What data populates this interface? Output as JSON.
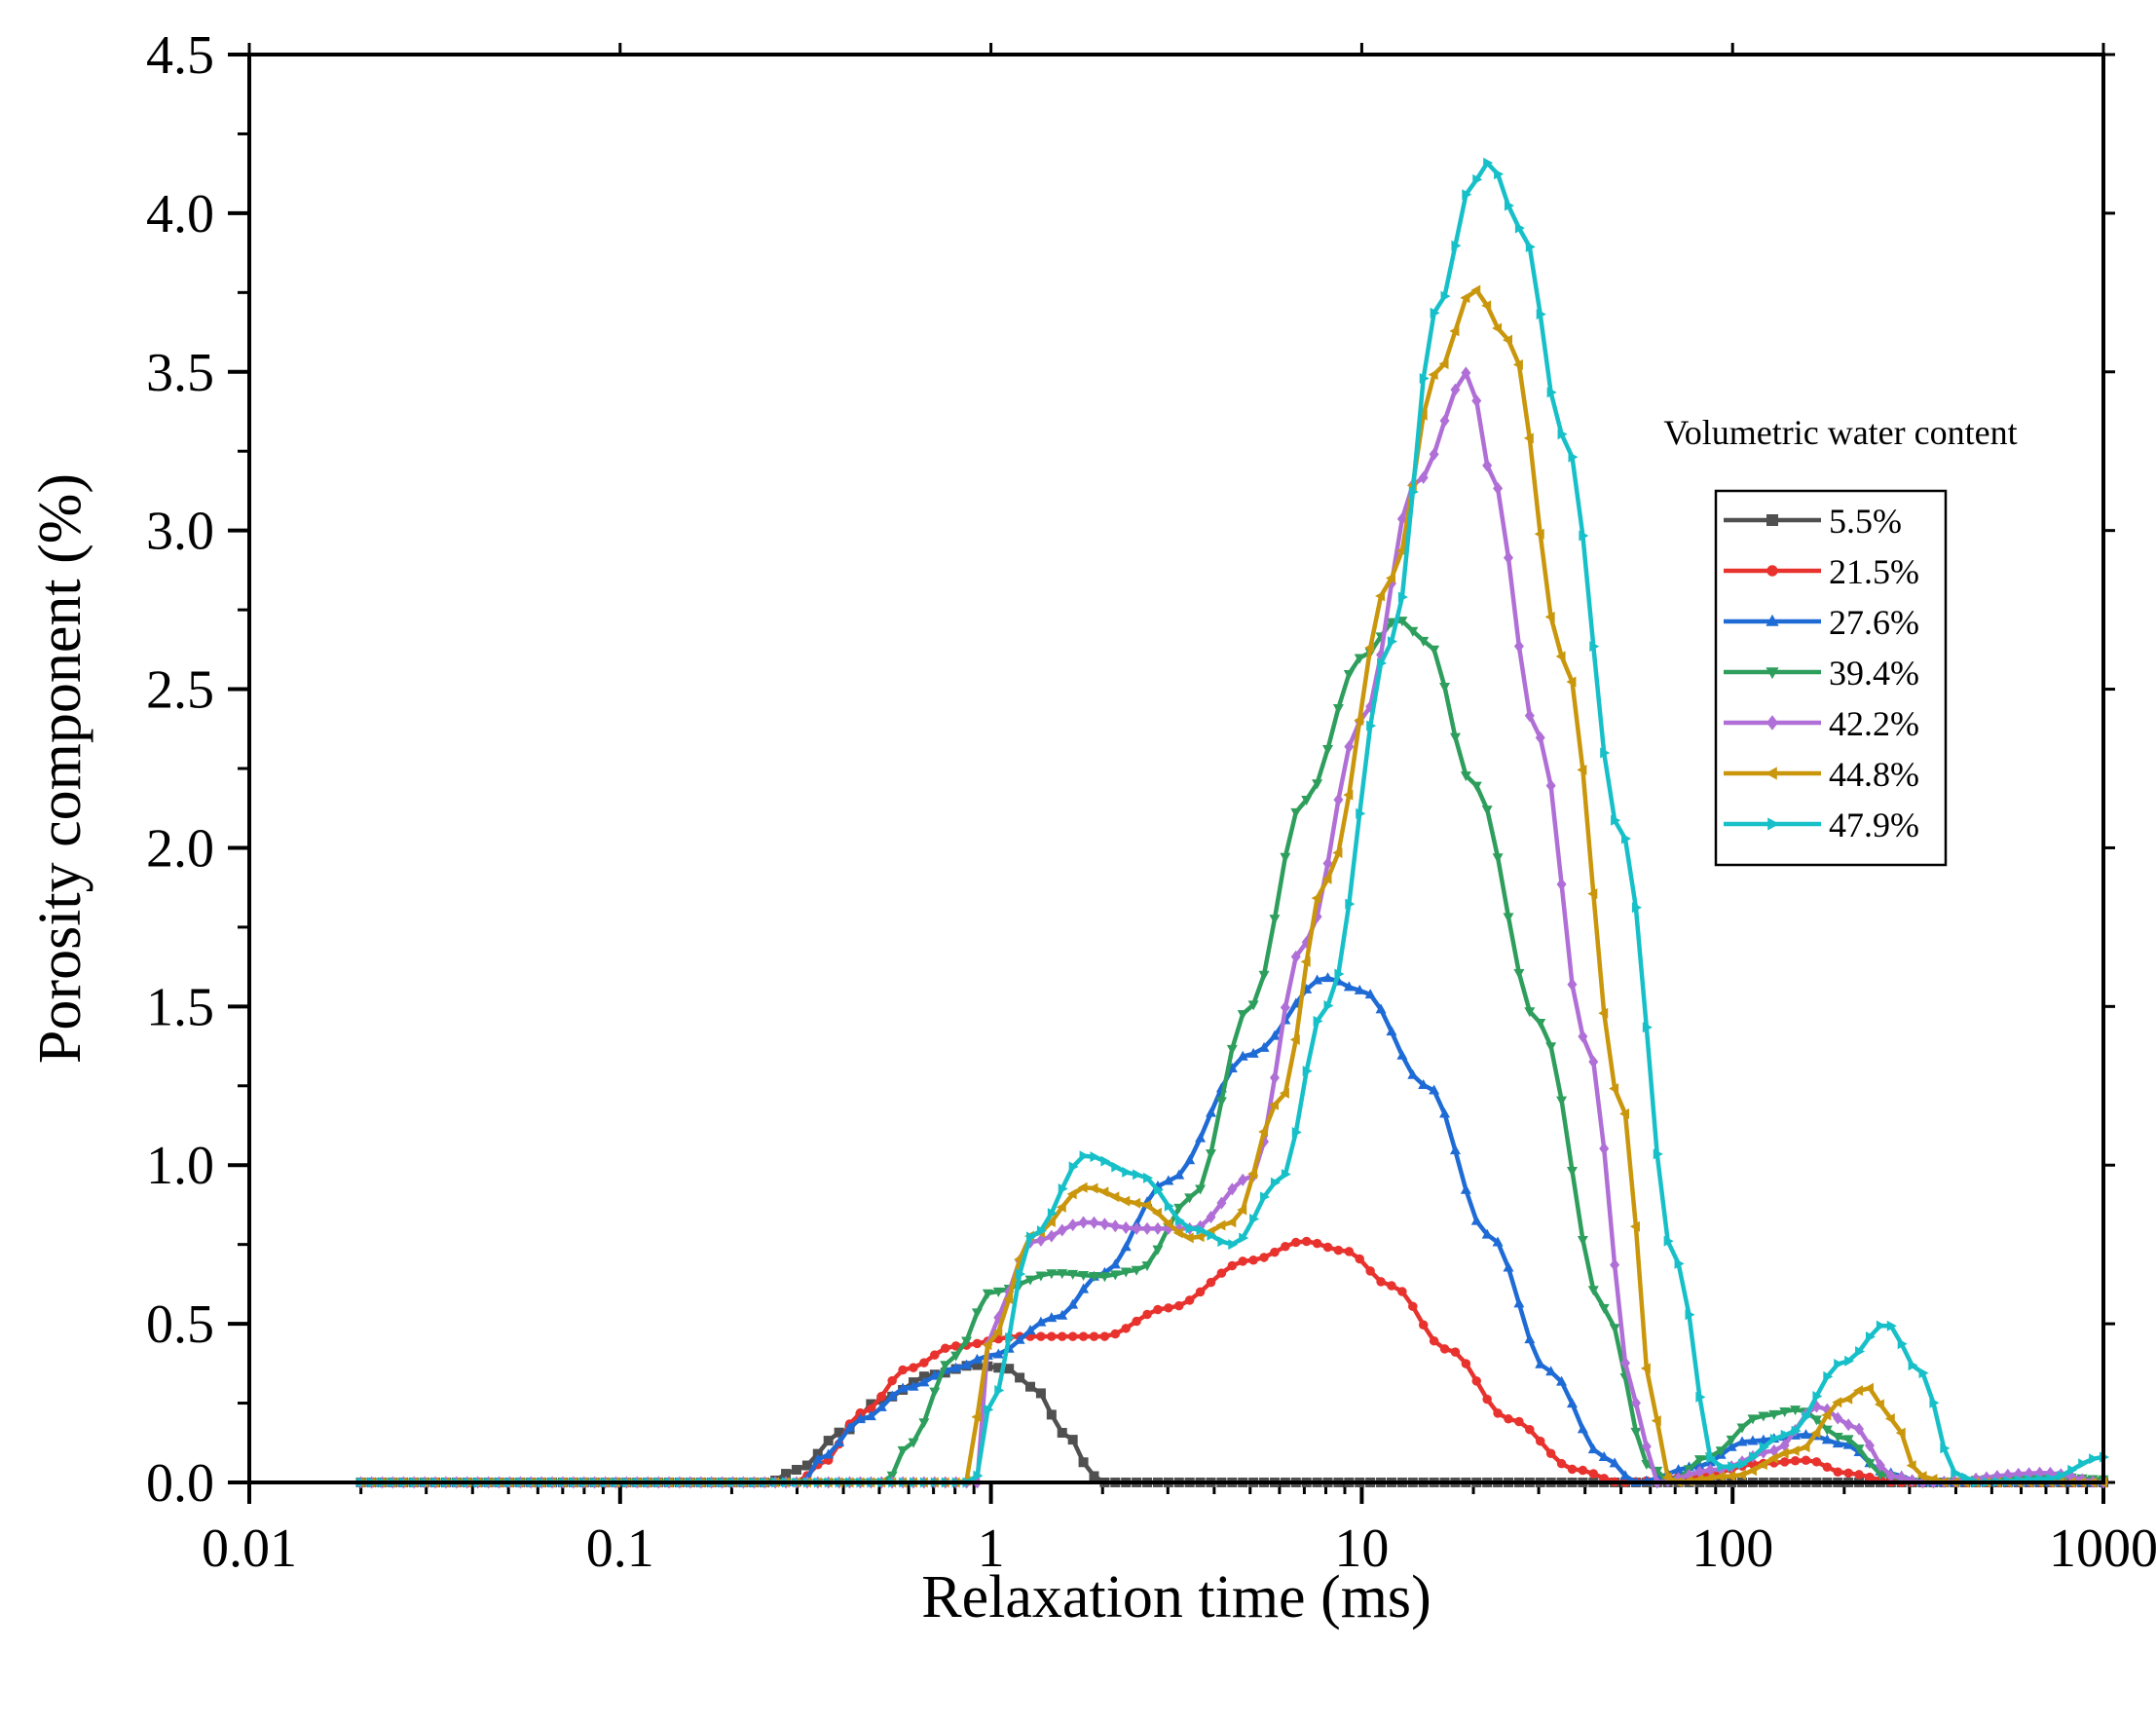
{
  "chart_data": {
    "type": "line",
    "title": "",
    "xlabel": "Relaxation time (ms)",
    "ylabel": "Porosity component  (%)",
    "xscale": "log",
    "xlim": [
      0.01,
      1000
    ],
    "ylim": [
      0,
      4.5
    ],
    "x_ticks": [
      "0.01",
      "0.1",
      "1",
      "10",
      "100",
      "1000"
    ],
    "y_ticks": [
      "0.0",
      "0.5",
      "1.0",
      "1.5",
      "2.0",
      "2.5",
      "3.0",
      "3.5",
      "4.0",
      "4.5"
    ],
    "x_range": [
      0.02,
      1000
    ],
    "legend_title": "Volumetric water content",
    "legend_position": "right",
    "series": [
      {
        "name": "5.5%",
        "color": "#505050",
        "marker": "square",
        "points": [
          [
            0.02,
            0
          ],
          [
            0.25,
            0
          ],
          [
            0.3,
            0.04
          ],
          [
            0.4,
            0.16
          ],
          [
            0.5,
            0.26
          ],
          [
            0.7,
            0.34
          ],
          [
            0.9,
            0.37
          ],
          [
            1.1,
            0.36
          ],
          [
            1.3,
            0.3
          ],
          [
            1.6,
            0.15
          ],
          [
            1.9,
            0.02
          ],
          [
            2,
            0
          ],
          [
            1000,
            0
          ]
        ]
      },
      {
        "name": "21.5%",
        "color": "#e8322e",
        "marker": "circle",
        "points": [
          [
            0.02,
            0
          ],
          [
            0.3,
            0
          ],
          [
            0.35,
            0.06
          ],
          [
            0.45,
            0.22
          ],
          [
            0.6,
            0.36
          ],
          [
            0.8,
            0.43
          ],
          [
            1.2,
            0.46
          ],
          [
            2,
            0.46
          ],
          [
            3,
            0.55
          ],
          [
            5,
            0.7
          ],
          [
            7,
            0.76
          ],
          [
            9,
            0.73
          ],
          [
            12,
            0.62
          ],
          [
            17,
            0.42
          ],
          [
            25,
            0.2
          ],
          [
            38,
            0.04
          ],
          [
            50,
            0
          ],
          [
            80,
            0.02
          ],
          [
            120,
            0.06
          ],
          [
            160,
            0.07
          ],
          [
            200,
            0.03
          ],
          [
            280,
            0
          ],
          [
            1000,
            0
          ]
        ]
      },
      {
        "name": "27.6%",
        "color": "#1f6bd6",
        "marker": "triangle-up",
        "points": [
          [
            0.02,
            0
          ],
          [
            0.31,
            0
          ],
          [
            0.35,
            0.08
          ],
          [
            0.45,
            0.2
          ],
          [
            0.6,
            0.3
          ],
          [
            0.8,
            0.36
          ],
          [
            1,
            0.4
          ],
          [
            1.5,
            0.52
          ],
          [
            2,
            0.66
          ],
          [
            3,
            0.95
          ],
          [
            5,
            1.35
          ],
          [
            8,
            1.59
          ],
          [
            10,
            1.55
          ],
          [
            15,
            1.25
          ],
          [
            22,
            0.78
          ],
          [
            32,
            0.35
          ],
          [
            45,
            0.08
          ],
          [
            55,
            0
          ],
          [
            80,
            0.05
          ],
          [
            110,
            0.13
          ],
          [
            160,
            0.15
          ],
          [
            200,
            0.12
          ],
          [
            260,
            0.03
          ],
          [
            330,
            0
          ],
          [
            1000,
            0
          ]
        ]
      },
      {
        "name": "39.4%",
        "color": "#2e9e5c",
        "marker": "triangle-down",
        "points": [
          [
            0.02,
            0
          ],
          [
            0.52,
            0
          ],
          [
            0.6,
            0.12
          ],
          [
            0.8,
            0.4
          ],
          [
            1,
            0.6
          ],
          [
            1.5,
            0.66
          ],
          [
            2,
            0.65
          ],
          [
            2.5,
            0.67
          ],
          [
            3.5,
            0.9
          ],
          [
            5,
            1.5
          ],
          [
            7,
            2.15
          ],
          [
            10,
            2.6
          ],
          [
            12.5,
            2.72
          ],
          [
            15,
            2.65
          ],
          [
            20,
            2.2
          ],
          [
            30,
            1.45
          ],
          [
            45,
            0.55
          ],
          [
            60,
            0.05
          ],
          [
            68,
            0
          ],
          [
            85,
            0.08
          ],
          [
            120,
            0.21
          ],
          [
            150,
            0.23
          ],
          [
            200,
            0.14
          ],
          [
            260,
            0.02
          ],
          [
            320,
            0
          ],
          [
            700,
            0.02
          ],
          [
            1000,
            0.01
          ]
        ]
      },
      {
        "name": "42.2%",
        "color": "#b06fd6",
        "marker": "diamond",
        "points": [
          [
            0.02,
            0
          ],
          [
            0.92,
            0
          ],
          [
            1,
            0.5
          ],
          [
            1.3,
            0.76
          ],
          [
            1.8,
            0.82
          ],
          [
            2.5,
            0.8
          ],
          [
            3.5,
            0.8
          ],
          [
            5,
            0.96
          ],
          [
            7,
            1.7
          ],
          [
            10,
            2.4
          ],
          [
            14,
            3.15
          ],
          [
            19.5,
            3.5
          ],
          [
            22,
            3.2
          ],
          [
            30,
            2.35
          ],
          [
            40,
            1.4
          ],
          [
            55,
            0.25
          ],
          [
            62,
            0
          ],
          [
            90,
            0.04
          ],
          [
            130,
            0.1
          ],
          [
            170,
            0.24
          ],
          [
            210,
            0.18
          ],
          [
            270,
            0.02
          ],
          [
            330,
            0
          ],
          [
            700,
            0.03
          ],
          [
            1000,
            0
          ]
        ]
      },
      {
        "name": "44.8%",
        "color": "#c9960c",
        "marker": "triangle-left",
        "points": [
          [
            0.02,
            0
          ],
          [
            0.85,
            0
          ],
          [
            1,
            0.45
          ],
          [
            1.3,
            0.78
          ],
          [
            1.8,
            0.93
          ],
          [
            2.5,
            0.88
          ],
          [
            3.5,
            0.77
          ],
          [
            4.5,
            0.82
          ],
          [
            6,
            1.2
          ],
          [
            8,
            1.9
          ],
          [
            12,
            2.85
          ],
          [
            16,
            3.5
          ],
          [
            20,
            3.76
          ],
          [
            25,
            3.6
          ],
          [
            35,
            2.6
          ],
          [
            50,
            1.2
          ],
          [
            62,
            0.2
          ],
          [
            68,
            0
          ],
          [
            100,
            0.02
          ],
          [
            150,
            0.1
          ],
          [
            200,
            0.26
          ],
          [
            230,
            0.3
          ],
          [
            270,
            0.2
          ],
          [
            320,
            0.02
          ],
          [
            380,
            0
          ],
          [
            1000,
            0
          ]
        ]
      },
      {
        "name": "47.9%",
        "color": "#17c0c8",
        "marker": "triangle-right",
        "points": [
          [
            0.02,
            0
          ],
          [
            0.9,
            0
          ],
          [
            1,
            0.25
          ],
          [
            1.3,
            0.78
          ],
          [
            1.8,
            1.03
          ],
          [
            2.5,
            0.97
          ],
          [
            3.5,
            0.8
          ],
          [
            4.5,
            0.75
          ],
          [
            6,
            0.95
          ],
          [
            8,
            1.5
          ],
          [
            12,
            2.65
          ],
          [
            16,
            3.7
          ],
          [
            20,
            4.1
          ],
          [
            22,
            4.16
          ],
          [
            27,
            3.95
          ],
          [
            35,
            3.3
          ],
          [
            50,
            2.05
          ],
          [
            70,
            0.7
          ],
          [
            90,
            0.05
          ],
          [
            100,
            0.05
          ],
          [
            140,
            0.15
          ],
          [
            200,
            0.38
          ],
          [
            260,
            0.5
          ],
          [
            320,
            0.35
          ],
          [
            400,
            0.03
          ],
          [
            450,
            0
          ],
          [
            700,
            0.01
          ],
          [
            1000,
            0.08
          ]
        ]
      }
    ]
  }
}
